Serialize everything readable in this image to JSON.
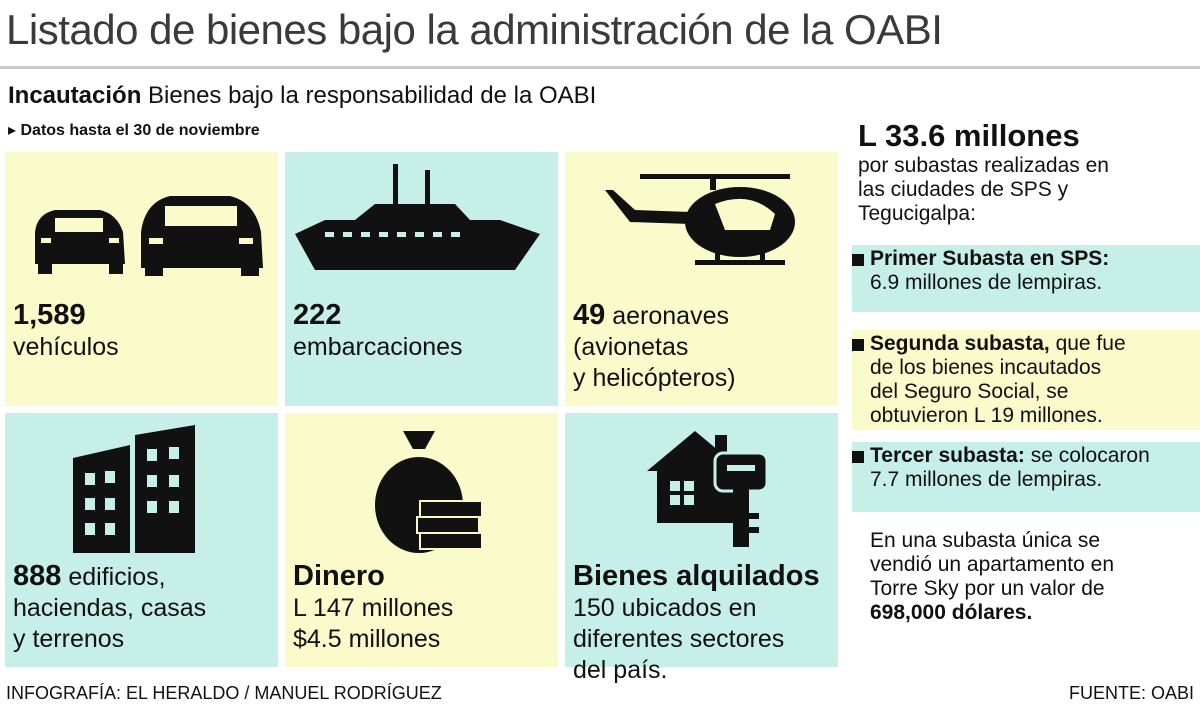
{
  "header": {
    "title": "Listado de bienes bajo la administración de la OABI",
    "subtitle_bold": "Incautación",
    "subtitle": "Bienes bajo la responsabilidad de la OABI",
    "note": "Datos hasta el 30 de noviembre"
  },
  "tiles": [
    {
      "bold": "1,589",
      "after": "",
      "lines": [
        "vehículos"
      ]
    },
    {
      "bold": "222",
      "after": "",
      "lines": [
        "embarcaciones"
      ]
    },
    {
      "bold": "49",
      "after": "aeronaves",
      "lines": [
        "(avionetas",
        "y helicópteros)"
      ]
    },
    {
      "bold": "888",
      "after": "edificios,",
      "lines": [
        "haciendas, casas",
        "y terrenos"
      ]
    },
    {
      "bold": "Dinero",
      "after": "",
      "lines": [
        "L 147 millones",
        "$4.5 millones"
      ]
    },
    {
      "bold": "Bienes alquilados",
      "after": "",
      "lines": [
        "150 ubicados en",
        "diferentes sectores",
        "del país."
      ]
    }
  ],
  "sidebar": {
    "headline": "L 33.6 millones",
    "intro": [
      "por subastas realizadas en",
      "las ciudades de SPS y",
      "Tegucigalpa:"
    ],
    "items": [
      {
        "bold": "Primer Subasta en SPS:",
        "after": "",
        "lines": [
          "6.9 millones de lempiras."
        ]
      },
      {
        "bold": "Segunda subasta,",
        "after": "que fue",
        "lines": [
          "de los bienes  incautados",
          "del Seguro Social, se",
          "obtuvieron L 19 millones."
        ]
      },
      {
        "bold": "Tercer subasta:",
        "after": "se colocaron",
        "lines": [
          "7.7 millones de lempiras."
        ]
      }
    ],
    "closing": [
      "En una subasta única se",
      "vendió un apartamento en",
      "Torre Sky por un valor de"
    ],
    "closing_bold": "698,000 dólares."
  },
  "footer": {
    "credit": "INFOGRAFÍA: EL HERALDO / MANUEL RODRÍGUEZ",
    "source": "FUENTE: OABI"
  }
}
